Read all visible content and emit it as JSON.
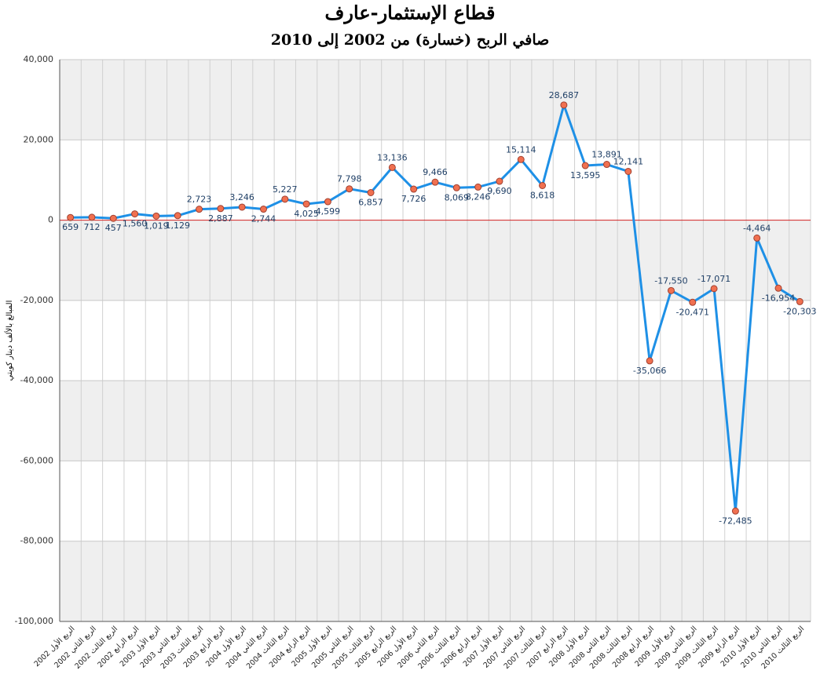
{
  "chart_data": {
    "type": "line",
    "title": "قطاع الإستثمار-عارف",
    "subtitle": "صافي الربح (خسارة) من 2002 إلى 2010",
    "y_label": "المبالغ بالألف دينار كويتي",
    "categories": [
      "الربع الأول 2002",
      "الربع الثاني 2002",
      "الربع الثالث 2002",
      "الربع الرابع 2002",
      "الربع الأول 2003",
      "الربع الثاني 2003",
      "الربع الثالث 2003",
      "الربع الرابع 2003",
      "الربع الأول 2004",
      "الربع الثاني 2004",
      "الربع الثالث 2004",
      "الربع الرابع 2004",
      "الربع الأول 2005",
      "الربع الثاني 2005",
      "الربع الثالث 2005",
      "الربع الرابع 2005",
      "الربع الأول 2006",
      "الربع الثاني 2006",
      "الربع الثالث 2006",
      "الربع الرابع 2006",
      "الربع الأول 2007",
      "الربع الثاني 2007",
      "الربع الثالث 2007",
      "الربع الرابع 2007",
      "الربع الأول 2008",
      "الربع الثاني 2008",
      "الربع الثالث 2008",
      "الربع الرابع 2008",
      "الربع الأول 2009",
      "الربع الثاني 2009",
      "الربع الثالث 2009",
      "الربع الرابع 2009",
      "الربع الأول 2010",
      "الربع الثاني 2010",
      "الربع الثالث 2010"
    ],
    "values": [
      659,
      712,
      457,
      1560,
      1019,
      1129,
      2723,
      2887,
      3246,
      2744,
      5227,
      4025,
      4599,
      7798,
      6857,
      13136,
      7726,
      9466,
      8069,
      8246,
      9690,
      15114,
      8618,
      28687,
      13595,
      13891,
      12141,
      -35066,
      -17550,
      -20471,
      -17071,
      -72485,
      -4464,
      -16954,
      -20303
    ],
    "value_labels": [
      "659",
      "712",
      "457",
      "1,560",
      "1,019",
      "1,129",
      "2,723",
      "2,887",
      "3,246",
      "2,744",
      "5,227",
      "4,025",
      "4,599",
      "7,798",
      "6,857",
      "13,136",
      "7,726",
      "9,466",
      "8,069",
      "8,246",
      "9,690",
      "15,114",
      "8,618",
      "28,687",
      "13,595",
      "13,891",
      "12,141",
      "-35,066",
      "-17,550",
      "-20,471",
      "-17,071",
      "-72,485",
      "-4,464",
      "-16,954",
      "-20,303"
    ],
    "color": "#1e90e6",
    "marker_color": "#f07050",
    "zero_line_color": "#d02020",
    "ylim": [
      -100000,
      40000
    ],
    "yticks": [
      {
        "value": -100000,
        "label": "-100,000"
      },
      {
        "value": -80000,
        "label": "-80,000"
      },
      {
        "value": -60000,
        "label": "-60,000"
      },
      {
        "value": -40000,
        "label": "-40,000"
      },
      {
        "value": -20000,
        "label": "-20,000"
      },
      0,
      {
        "value": 20000,
        "label": "20,000"
      },
      {
        "value": 40000,
        "label": "40,000"
      }
    ],
    "grid": true
  }
}
